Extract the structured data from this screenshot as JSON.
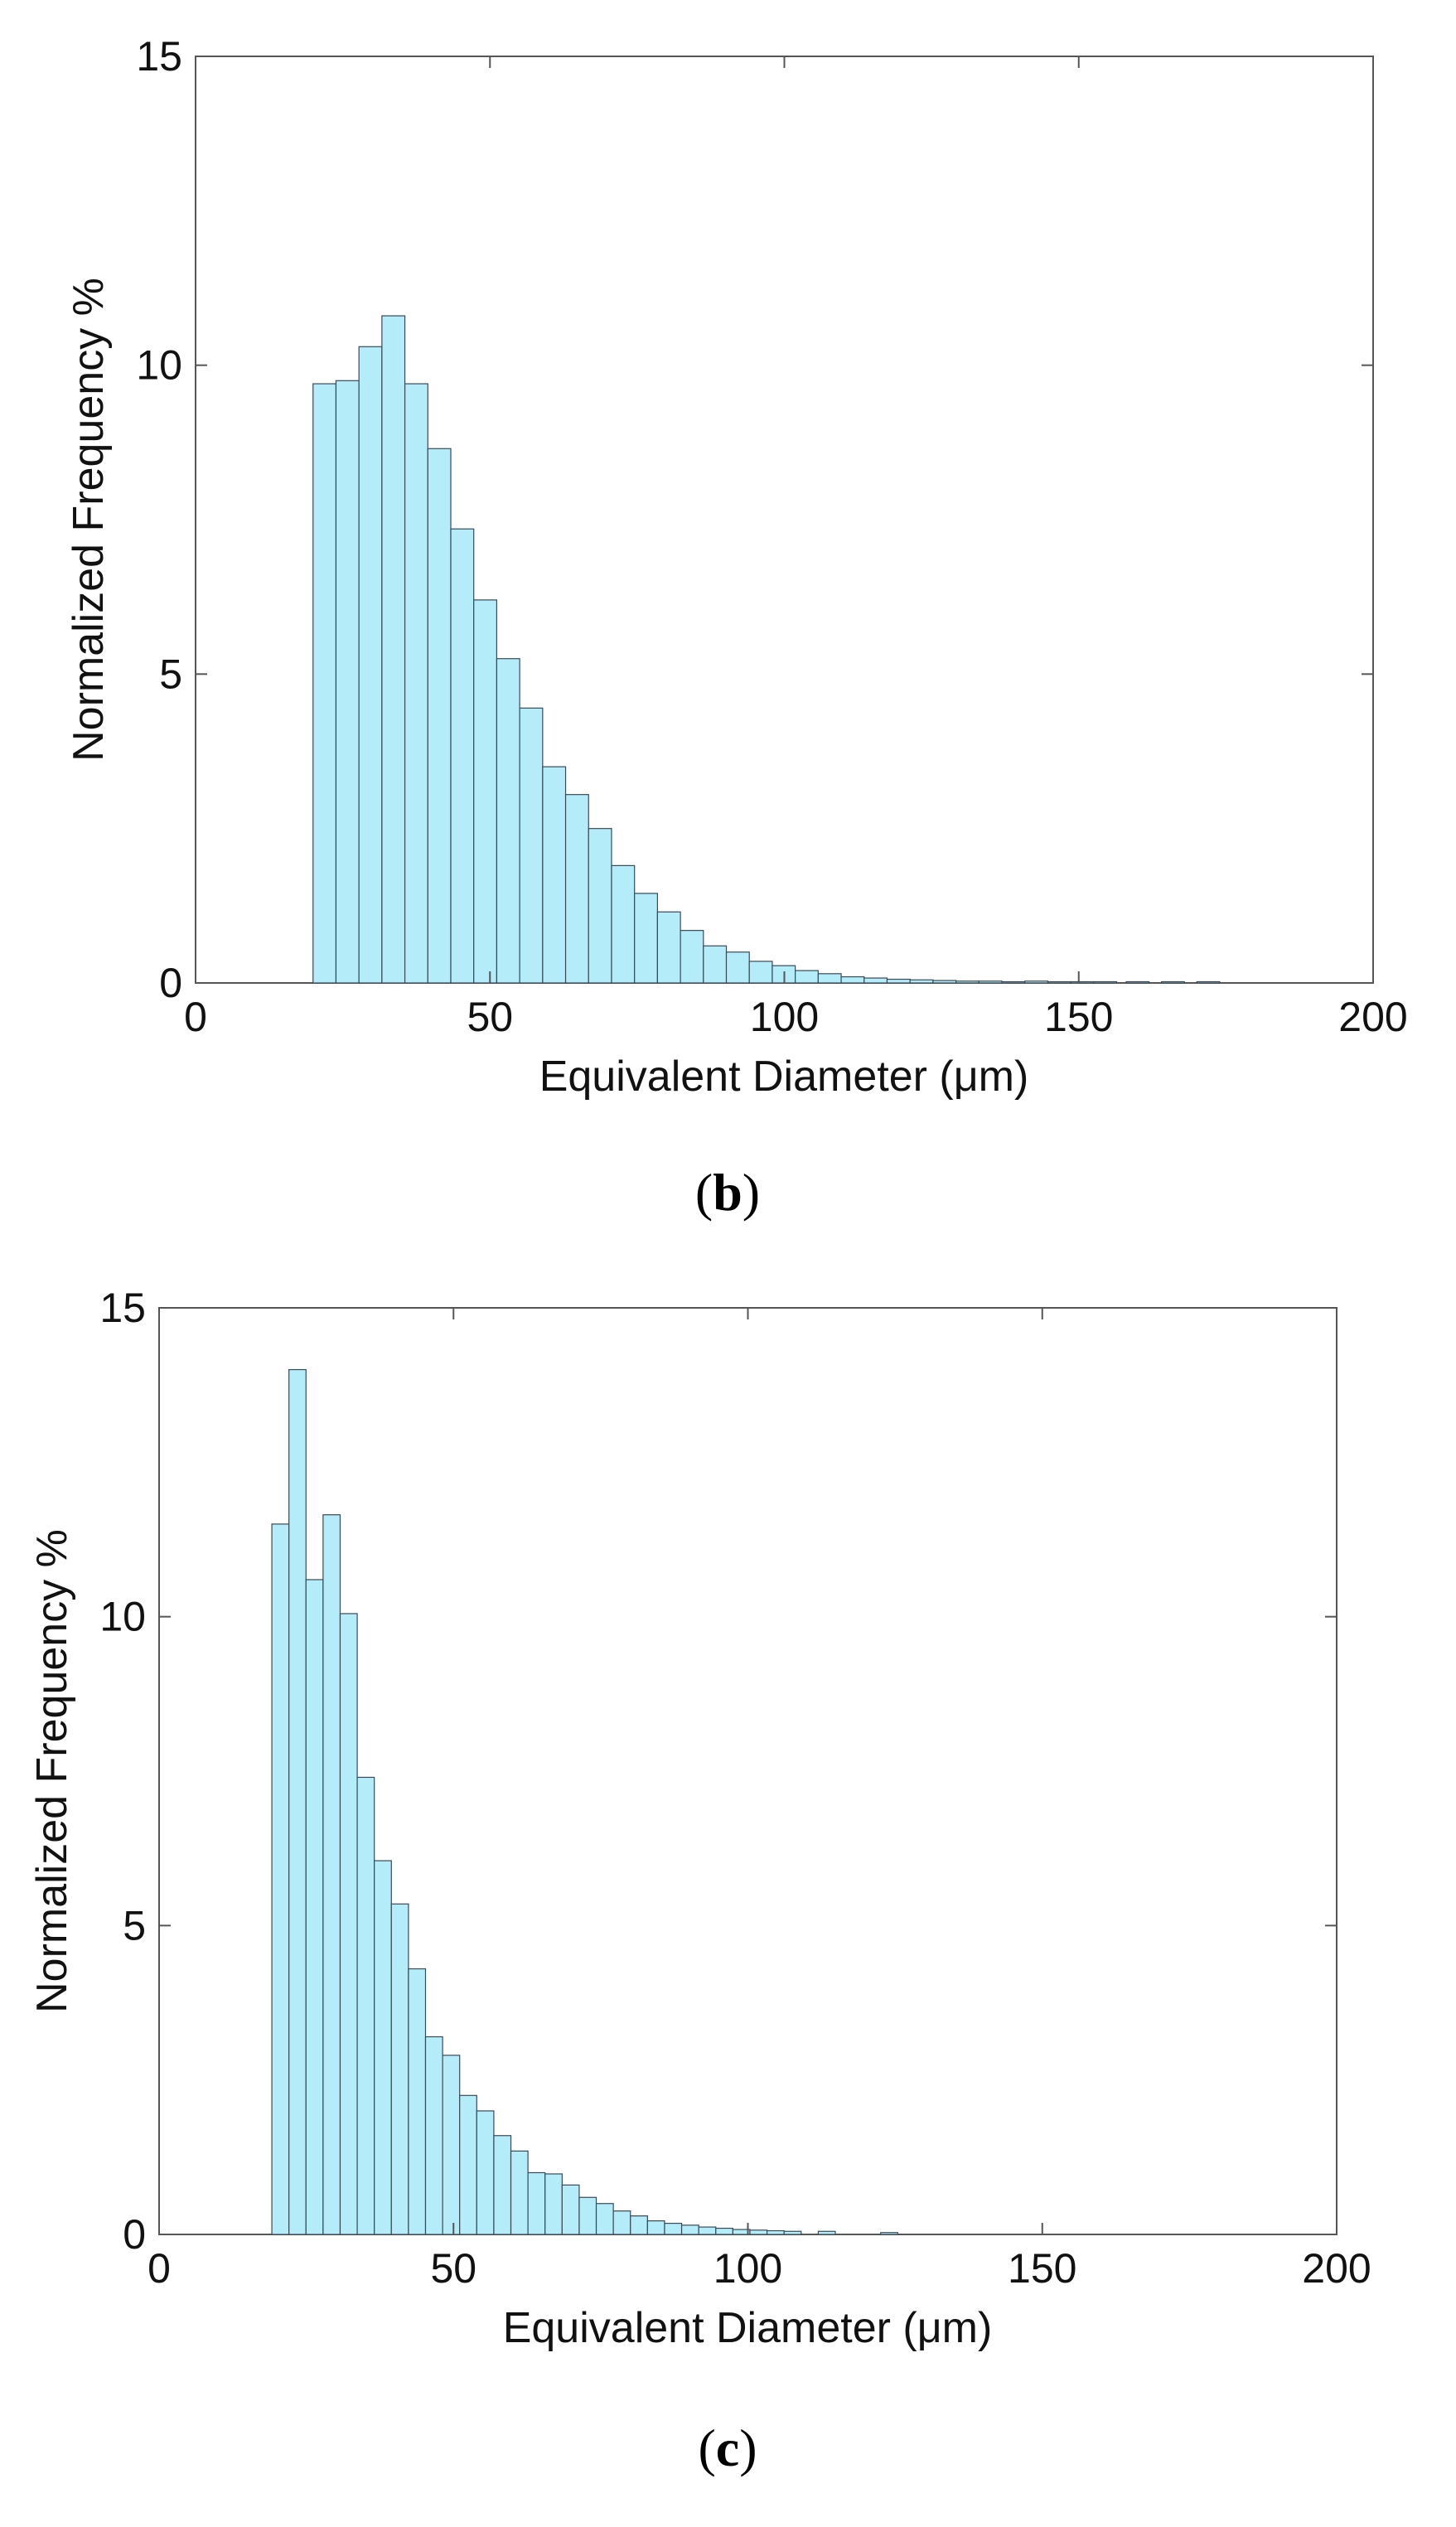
{
  "colors": {
    "bar_fill": "#b4ecfa",
    "bar_edge": "#3a4a55",
    "axes": "#555555"
  },
  "chart_data": [
    {
      "panel_label": "b",
      "type": "bar",
      "xlabel": "Equivalent Diameter (μm)",
      "ylabel": "Normalized Frequency %",
      "xlim": [
        0,
        200
      ],
      "ylim": [
        0,
        15
      ],
      "xticks": [
        "0",
        "50",
        "100",
        "150",
        "200"
      ],
      "yticks": [
        "0",
        "5",
        "10",
        "15"
      ],
      "grid": false,
      "bin_width": 3.9,
      "bars": [
        {
          "x": 21.9,
          "y": 9.7
        },
        {
          "x": 25.8,
          "y": 9.75
        },
        {
          "x": 29.7,
          "y": 10.3
        },
        {
          "x": 33.6,
          "y": 10.8
        },
        {
          "x": 37.5,
          "y": 9.7
        },
        {
          "x": 41.4,
          "y": 8.65
        },
        {
          "x": 45.3,
          "y": 7.35
        },
        {
          "x": 49.2,
          "y": 6.2
        },
        {
          "x": 53.1,
          "y": 5.25
        },
        {
          "x": 57.0,
          "y": 4.45
        },
        {
          "x": 60.9,
          "y": 3.5
        },
        {
          "x": 64.8,
          "y": 3.05
        },
        {
          "x": 68.7,
          "y": 2.5
        },
        {
          "x": 72.6,
          "y": 1.9
        },
        {
          "x": 76.5,
          "y": 1.45
        },
        {
          "x": 80.4,
          "y": 1.15
        },
        {
          "x": 84.3,
          "y": 0.85
        },
        {
          "x": 88.2,
          "y": 0.6
        },
        {
          "x": 92.1,
          "y": 0.5
        },
        {
          "x": 96.0,
          "y": 0.35
        },
        {
          "x": 99.9,
          "y": 0.28
        },
        {
          "x": 103.8,
          "y": 0.2
        },
        {
          "x": 107.7,
          "y": 0.15
        },
        {
          "x": 111.6,
          "y": 0.1
        },
        {
          "x": 115.5,
          "y": 0.08
        },
        {
          "x": 119.4,
          "y": 0.06
        },
        {
          "x": 123.3,
          "y": 0.05
        },
        {
          "x": 127.2,
          "y": 0.04
        },
        {
          "x": 131.1,
          "y": 0.03
        },
        {
          "x": 135.0,
          "y": 0.03
        },
        {
          "x": 138.9,
          "y": 0.02
        },
        {
          "x": 142.8,
          "y": 0.03
        },
        {
          "x": 146.7,
          "y": 0.02
        },
        {
          "x": 150.6,
          "y": 0.02
        },
        {
          "x": 154.5,
          "y": 0.02
        },
        {
          "x": 160.0,
          "y": 0.02
        },
        {
          "x": 166.0,
          "y": 0.02
        },
        {
          "x": 172.0,
          "y": 0.02
        }
      ]
    },
    {
      "panel_label": "c",
      "type": "bar",
      "xlabel": "Equivalent Diameter (μm)",
      "ylabel": "Normalized Frequency %",
      "xlim": [
        0,
        200
      ],
      "ylim": [
        0,
        15
      ],
      "xticks": [
        "0",
        "50",
        "100",
        "150",
        "200"
      ],
      "yticks": [
        "0",
        "5",
        "10",
        "15"
      ],
      "grid": false,
      "bin_width": 2.9,
      "bars": [
        {
          "x": 20.6,
          "y": 11.5
        },
        {
          "x": 23.5,
          "y": 14.0
        },
        {
          "x": 26.4,
          "y": 10.6
        },
        {
          "x": 29.3,
          "y": 11.65
        },
        {
          "x": 32.2,
          "y": 10.05
        },
        {
          "x": 35.1,
          "y": 7.4
        },
        {
          "x": 38.0,
          "y": 6.05
        },
        {
          "x": 40.9,
          "y": 5.35
        },
        {
          "x": 43.8,
          "y": 4.3
        },
        {
          "x": 46.7,
          "y": 3.2
        },
        {
          "x": 49.6,
          "y": 2.9
        },
        {
          "x": 52.5,
          "y": 2.25
        },
        {
          "x": 55.4,
          "y": 2.0
        },
        {
          "x": 58.3,
          "y": 1.6
        },
        {
          "x": 61.2,
          "y": 1.35
        },
        {
          "x": 64.1,
          "y": 1.0
        },
        {
          "x": 67.0,
          "y": 0.98
        },
        {
          "x": 69.9,
          "y": 0.8
        },
        {
          "x": 72.8,
          "y": 0.6
        },
        {
          "x": 75.7,
          "y": 0.5
        },
        {
          "x": 78.6,
          "y": 0.38
        },
        {
          "x": 81.5,
          "y": 0.3
        },
        {
          "x": 84.4,
          "y": 0.22
        },
        {
          "x": 87.3,
          "y": 0.18
        },
        {
          "x": 90.2,
          "y": 0.15
        },
        {
          "x": 93.1,
          "y": 0.12
        },
        {
          "x": 96.0,
          "y": 0.1
        },
        {
          "x": 98.9,
          "y": 0.08
        },
        {
          "x": 101.8,
          "y": 0.07
        },
        {
          "x": 104.7,
          "y": 0.06
        },
        {
          "x": 107.6,
          "y": 0.05
        },
        {
          "x": 113.4,
          "y": 0.05
        },
        {
          "x": 124.0,
          "y": 0.03
        }
      ]
    }
  ],
  "captions": [
    "b",
    "c"
  ]
}
